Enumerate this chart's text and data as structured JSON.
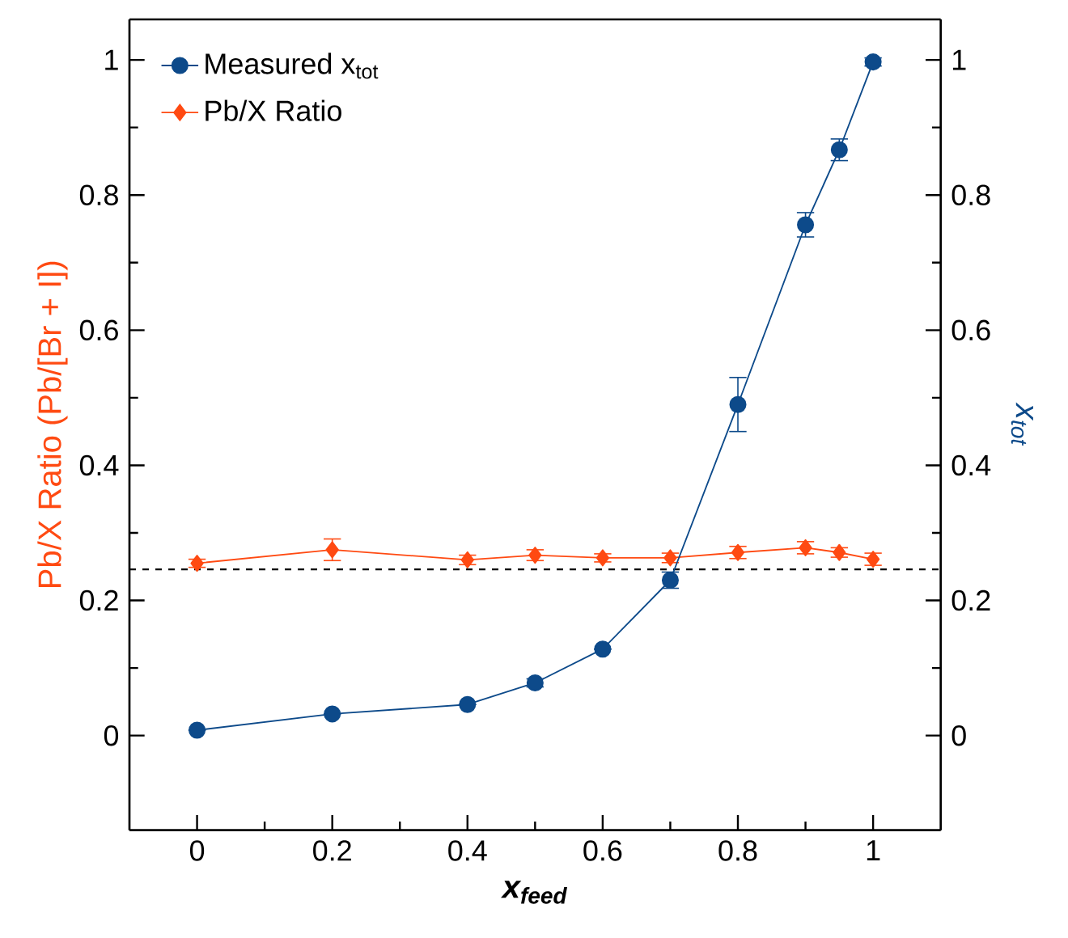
{
  "chart_data": {
    "type": "line",
    "xlabel": "x$_{feed}$",
    "ylabel": "Pb/X Ratio (Pb/[Br + I])",
    "y2label": "x$_{tot}$",
    "x": [
      0,
      0.2,
      0.4,
      0.5,
      0.6,
      0.7,
      0.8,
      0.9,
      0.95,
      1.0
    ],
    "series": [
      {
        "name": "Measured x$_{tot}$",
        "color": "#0d4a8a",
        "axis": "y2",
        "marker": "circle",
        "values": [
          0.008,
          0.032,
          0.046,
          0.078,
          0.128,
          0.23,
          0.49,
          0.756,
          0.867,
          0.997
        ],
        "errors": [
          null,
          null,
          null,
          0.006,
          null,
          0.012,
          0.04,
          0.018,
          0.016,
          0.006
        ]
      },
      {
        "name": "Pb/X Ratio",
        "color": "#ff4a12",
        "marker": "diamond",
        "values": [
          0.255,
          0.275,
          0.26,
          0.267,
          0.263,
          0.263,
          0.271,
          0.278,
          0.271,
          0.261
        ],
        "errors": [
          0.006,
          0.016,
          0.007,
          0.008,
          0.006,
          0.007,
          0.009,
          0.009,
          0.007,
          0.009
        ]
      }
    ],
    "xlim": [
      -0.1,
      1.1
    ],
    "xticks": [
      0,
      0.2,
      0.4,
      0.6,
      0.8,
      1
    ],
    "ylim": [
      -0.14,
      1.06
    ],
    "yticks": [
      0,
      0.2,
      0.4,
      0.6,
      0.8,
      1
    ],
    "y2lim": [
      -0.14,
      1.06
    ],
    "y2ticks": [
      0,
      0.2,
      0.4,
      0.6,
      0.8,
      1
    ],
    "ref_lines": [
      {
        "axis": "y",
        "value": 0.246,
        "color": "#000000",
        "line_style": "dashed"
      }
    ],
    "legend": "top left",
    "grid": false
  }
}
